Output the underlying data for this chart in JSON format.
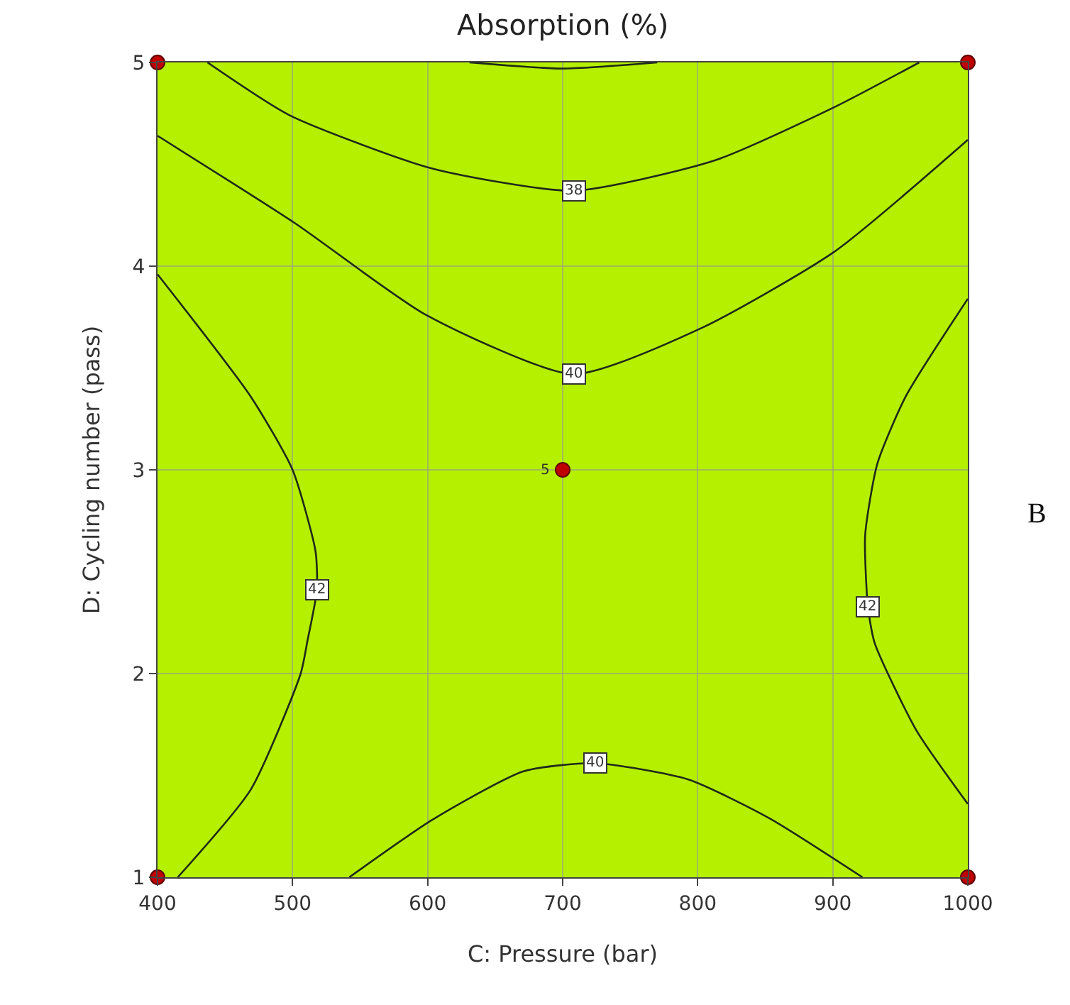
{
  "chart_data": {
    "type": "line",
    "title": "Absorption (%)",
    "xlabel": "C: Pressure (bar)",
    "ylabel": "D: Cycling number (pass)",
    "xlim": [
      400,
      1000
    ],
    "xticks": [
      400,
      500,
      600,
      700,
      800,
      900,
      1000
    ],
    "ylim": [
      1,
      5
    ],
    "yticks": [
      1,
      2,
      3,
      4,
      5
    ],
    "grid": true,
    "legend": false,
    "series": [
      {
        "name": "38",
        "color": "#1f2a1a",
        "x": [
          437,
          498,
          603,
          708,
          813,
          901,
          964
        ],
        "values": [
          5,
          4.74,
          4.48,
          4.37,
          4.52,
          4.78,
          5
        ]
      },
      {
        "name": "40",
        "color": "#1f2a1a",
        "x": [
          400,
          502,
          599,
          708,
          804,
          901,
          1000
        ],
        "values": [
          4.64,
          4.21,
          3.76,
          3.47,
          3.7,
          4.07,
          4.62
        ]
      },
      {
        "name": "42",
        "color": "#1f2a1a",
        "x": [
          400,
          469,
          500,
          517,
          518,
          511,
          506,
          469,
          415
        ],
        "values": [
          3.96,
          3.36,
          3.0,
          2.6,
          2.41,
          2.16,
          2.0,
          1.43,
          1
        ]
      },
      {
        "name": "42",
        "color": "#1f2a1a",
        "x": [
          1000,
          954,
          933,
          924,
          926,
          931,
          962,
          1000
        ],
        "values": [
          3.84,
          3.36,
          3.03,
          2.68,
          2.33,
          2.15,
          1.72,
          1.36
        ]
      },
      {
        "name": "40",
        "color": "#1f2a1a",
        "x": [
          542,
          603,
          671,
          724,
          793,
          853,
          922
        ],
        "values": [
          1,
          1.28,
          1.52,
          1.56,
          1.48,
          1.29,
          1
        ]
      },
      {
        "color": "#1f2a1a",
        "x": [
          631,
          700,
          770
        ],
        "values": [
          5,
          4.97,
          5
        ]
      },
      {
        "type": "scatter",
        "marker": "circle",
        "color": "#c00000",
        "x": [
          400,
          1000,
          700,
          400,
          1000
        ],
        "values": [
          5,
          5,
          3,
          1,
          1
        ]
      }
    ],
    "annotations": [
      {
        "text": "5",
        "x": 700,
        "y": 3
      },
      "B"
    ]
  }
}
